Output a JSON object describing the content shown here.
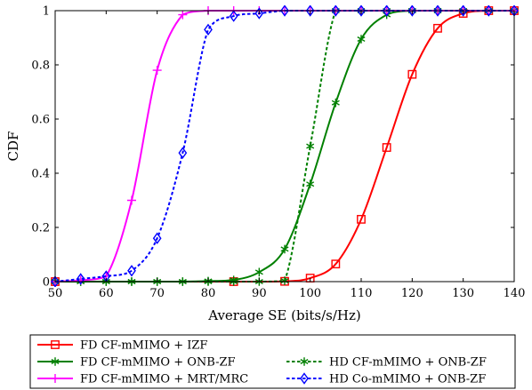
{
  "chart_data": {
    "type": "line",
    "xlabel": "Average SE (bits/s/Hz)",
    "ylabel": "CDF",
    "xlim": [
      50,
      140
    ],
    "ylim": [
      0,
      1
    ],
    "xticks": [
      "50",
      "60",
      "70",
      "80",
      "90",
      "100",
      "110",
      "120",
      "130",
      "140"
    ],
    "yticks": [
      "0",
      "0.2",
      "0.4",
      "0.6",
      "0.8",
      "1"
    ],
    "grid": false,
    "legend_position": "below-plot",
    "series": [
      {
        "name": "FD CF-mMIMO + IZF",
        "color": "#ff0000",
        "dash": "solid",
        "marker": "square",
        "x": [
          50,
          85,
          95,
          100,
          105,
          110,
          115,
          120,
          125,
          130,
          135,
          140
        ],
        "y": [
          0,
          0,
          0.001,
          0.013,
          0.065,
          0.23,
          0.495,
          0.765,
          0.935,
          0.99,
          1.0,
          1.0
        ]
      },
      {
        "name": "FD CF-mMIMO + ONB-ZF",
        "color": "#008000",
        "dash": "solid",
        "marker": "asterisk",
        "x": [
          50,
          55,
          60,
          65,
          70,
          75,
          80,
          85,
          90,
          95,
          100,
          105,
          110,
          115,
          120,
          125,
          130,
          135,
          140
        ],
        "y": [
          0,
          0,
          0,
          0,
          0,
          0,
          0.002,
          0.006,
          0.035,
          0.12,
          0.36,
          0.66,
          0.895,
          0.985,
          1.0,
          1.0,
          1.0,
          1.0,
          1.0
        ]
      },
      {
        "name": "HD CF-mMIMO + ONB-ZF",
        "color": "#008000",
        "dash": "dotted",
        "marker": "asterisk",
        "x": [
          50,
          55,
          60,
          65,
          70,
          75,
          80,
          85,
          90,
          95,
          100,
          105,
          110,
          115,
          120,
          125,
          130,
          135,
          140
        ],
        "y": [
          0,
          0,
          0,
          0,
          0,
          0,
          0,
          0,
          0,
          0.003,
          0.5,
          1.0,
          1.0,
          1.0,
          1.0,
          1.0,
          1.0,
          1.0,
          1.0
        ]
      },
      {
        "name": "FD CF-mMIMO + MRT/MRC",
        "color": "#ff00ff",
        "dash": "solid",
        "marker": "plus",
        "x": [
          50,
          55,
          60,
          65,
          70,
          75,
          80,
          85,
          90,
          95,
          100,
          105,
          110,
          115,
          120,
          125,
          130,
          135,
          140
        ],
        "y": [
          0,
          0.005,
          0.02,
          0.3,
          0.78,
          0.985,
          1.0,
          1.0,
          1.0,
          1.0,
          1.0,
          1.0,
          1.0,
          1.0,
          1.0,
          1.0,
          1.0,
          1.0,
          1.0
        ]
      },
      {
        "name": "HD Co-mMIMO + ONB-ZF",
        "color": "#0000ff",
        "dash": "dotted",
        "marker": "diamond",
        "x": [
          50,
          55,
          60,
          65,
          70,
          75,
          80,
          85,
          90,
          95,
          100,
          105,
          110,
          115,
          120,
          125,
          130,
          135,
          140
        ],
        "y": [
          0,
          0.01,
          0.02,
          0.04,
          0.16,
          0.475,
          0.93,
          0.98,
          0.99,
          1.0,
          1.0,
          1.0,
          1.0,
          1.0,
          1.0,
          1.0,
          1.0,
          1.0,
          1.0
        ]
      }
    ]
  }
}
